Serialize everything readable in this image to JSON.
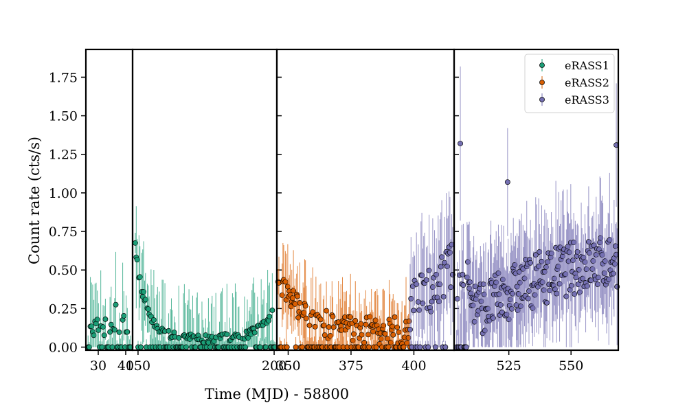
{
  "chart_data": {
    "type": "scatter",
    "title": "",
    "xlabel": "Time (MJD) - 58800",
    "ylabel": "Count rate (cts/s)",
    "ylim": [
      -0.02,
      1.93
    ],
    "grid": false,
    "legend_position": "top-right",
    "y_ticks": [
      0.0,
      0.25,
      0.5,
      0.75,
      1.0,
      1.25,
      1.5,
      1.75
    ],
    "y_tick_labels": [
      "0.00",
      "0.25",
      "0.50",
      "0.75",
      "1.00",
      "1.25",
      "1.50",
      "1.75"
    ],
    "panels": [
      {
        "xlim": [
          25.5,
          42.5
        ],
        "x_ticks": [
          30,
          40
        ],
        "x_tick_labels": [
          "30",
          "40"
        ]
      },
      {
        "xlim": [
          148,
          201
        ],
        "x_ticks": [
          150,
          200
        ],
        "x_tick_labels": [
          "150",
          "200"
        ]
      },
      {
        "xlim": [
          345.5,
          416
        ],
        "x_ticks": [
          350,
          375,
          400
        ],
        "x_tick_labels": [
          "350",
          "375",
          "400"
        ]
      },
      {
        "xlim": [
          503,
          569
        ],
        "x_ticks": [
          525,
          550
        ],
        "x_tick_labels": [
          "525",
          "550"
        ]
      }
    ],
    "series": [
      {
        "name": "eRASS1",
        "color": "#1b9e77"
      },
      {
        "name": "eRASS2",
        "color": "#d95f02"
      },
      {
        "name": "eRASS3",
        "color": "#7570b3"
      }
    ]
  }
}
